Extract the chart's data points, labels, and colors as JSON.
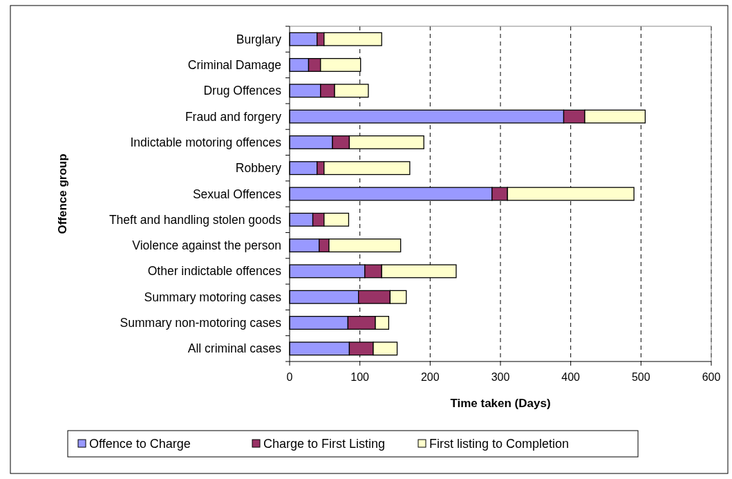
{
  "chart_data": {
    "type": "bar",
    "orientation": "horizontal",
    "stacked": true,
    "xlabel": "Time taken (Days)",
    "ylabel": "Offence group",
    "categories": [
      "Burglary",
      "Criminal Damage",
      "Drug Offences",
      "Fraud and forgery",
      "Indictable motoring offences",
      "Robbery",
      "Sexual Offences",
      "Theft and handling stolen goods",
      "Violence against the person",
      "Other indictable offences",
      "Summary motoring cases",
      "Summary non-motoring cases",
      "All criminal cases"
    ],
    "series": [
      {
        "name": "Offence to Charge",
        "color": "#9999ff",
        "values": [
          39,
          27,
          44,
          390,
          61,
          39,
          288,
          33,
          42,
          107,
          98,
          83,
          85
        ]
      },
      {
        "name": "Charge to First Listing",
        "color": "#993366",
        "values": [
          10,
          17,
          20,
          30,
          24,
          10,
          22,
          16,
          14,
          24,
          45,
          39,
          34
        ]
      },
      {
        "name": "First listing to Completion",
        "color": "#ffffcc",
        "values": [
          82,
          57,
          48,
          86,
          106,
          122,
          180,
          35,
          102,
          106,
          23,
          19,
          34
        ]
      }
    ],
    "xlim": [
      0,
      600
    ],
    "xticks": [
      0,
      100,
      200,
      300,
      400,
      500,
      600
    ],
    "grid": "x",
    "legend": "bottom"
  }
}
